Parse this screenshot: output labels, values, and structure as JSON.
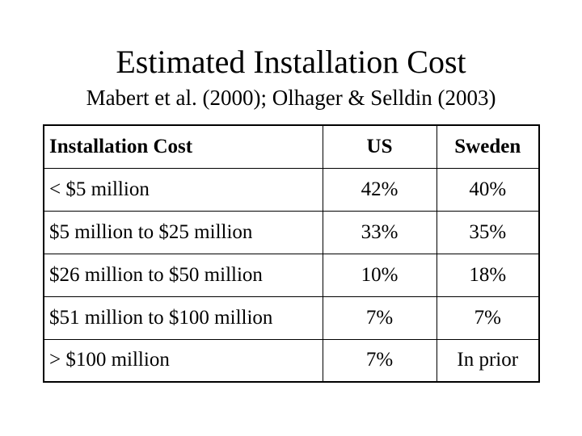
{
  "slide": {
    "title": "Estimated Installation Cost",
    "subtitle": "Mabert et al. (2000); Olhager & Selldin (2003)"
  },
  "table": {
    "headers": [
      "Installation Cost",
      "US",
      "Sweden"
    ],
    "rows": [
      [
        "< $5 million",
        "42%",
        "40%"
      ],
      [
        "$5 million to $25 million",
        "33%",
        "35%"
      ],
      [
        "$26 million to $50 million",
        "10%",
        "18%"
      ],
      [
        "$51 million to $100 million",
        "7%",
        "7%"
      ],
      [
        "> $100 million",
        "7%",
        "In prior"
      ]
    ]
  }
}
